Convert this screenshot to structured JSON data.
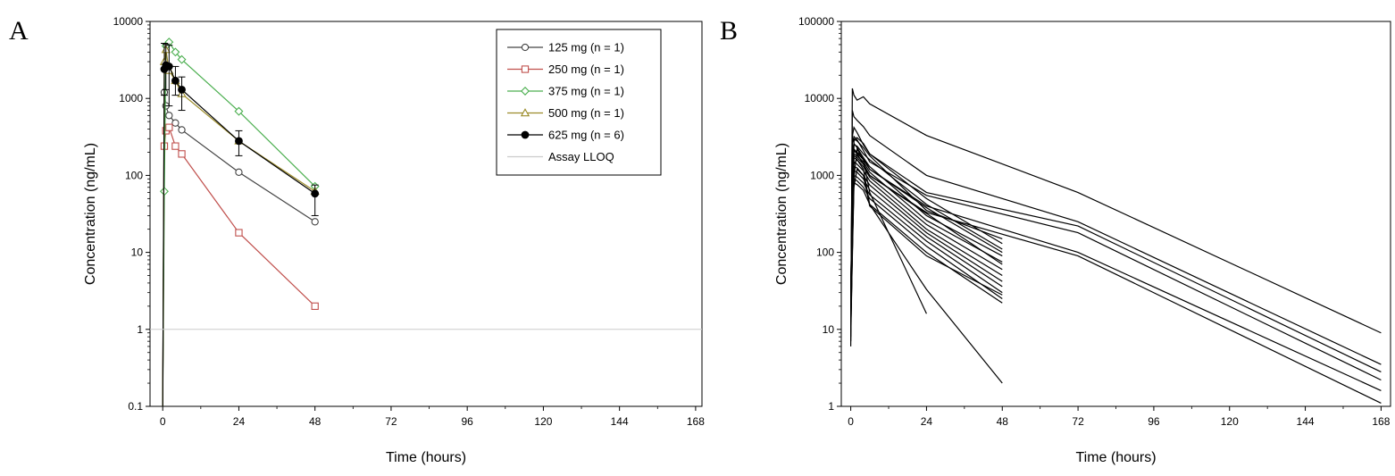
{
  "chart_data": [
    {
      "panel": "A",
      "type": "line",
      "xlabel": "Time (hours)",
      "ylabel": "Concentration (ng/mL)",
      "scale_y": "log",
      "xlim": [
        -4,
        170
      ],
      "ylim": [
        0.1,
        10000
      ],
      "x_ticks": [
        0,
        24,
        48,
        72,
        96,
        120,
        144,
        168
      ],
      "y_ticks": [
        0.1,
        1,
        10,
        100,
        1000,
        10000
      ],
      "y_tick_labels": [
        "0.1",
        "1",
        "10",
        "100",
        "1000",
        "10000"
      ],
      "legend_position": "top-right",
      "series": [
        {
          "name": "125 mg (n = 1)",
          "color": "#444444",
          "marker": "circle-open",
          "x": [
            0,
            0.5,
            1,
            2,
            4,
            6,
            24,
            48
          ],
          "y": [
            0.1,
            1200,
            800,
            600,
            480,
            390,
            110,
            25
          ]
        },
        {
          "name": "250 mg (n = 1)",
          "color": "#c0504d",
          "marker": "square-open",
          "x": [
            0,
            0.5,
            1,
            2,
            4,
            6,
            24,
            48
          ],
          "y": [
            0.1,
            240,
            380,
            420,
            240,
            190,
            18,
            2
          ]
        },
        {
          "name": "375 mg (n = 1)",
          "color": "#4caf50",
          "marker": "diamond-open",
          "x": [
            0,
            0.5,
            1,
            2,
            4,
            6,
            24,
            48
          ],
          "y": [
            0.1,
            62,
            4800,
            5400,
            4000,
            3200,
            680,
            72
          ]
        },
        {
          "name": "500 mg (n = 1)",
          "color": "#9c8c2a",
          "marker": "triangle-open",
          "x": [
            0,
            0.5,
            1,
            2,
            4,
            6,
            24,
            48
          ],
          "y": [
            0.1,
            3000,
            4300,
            2300,
            1700,
            1150,
            280,
            62
          ]
        },
        {
          "name": "625 mg (n = 6)",
          "color": "#000000",
          "marker": "circle-filled",
          "x": [
            0,
            0.5,
            1,
            2,
            4,
            6,
            24,
            48
          ],
          "y": [
            0.1,
            2400,
            2700,
            2600,
            1700,
            1300,
            280,
            58
          ],
          "error_low": [
            null,
            1100,
            1300,
            800,
            1100,
            700,
            180,
            30
          ],
          "error_high": [
            null,
            5200,
            5100,
            4900,
            2600,
            1900,
            380,
            75
          ]
        },
        {
          "name": "Assay LLOQ",
          "color": "#cccccc",
          "marker": "none",
          "x": [
            -4,
            170
          ],
          "y": [
            1,
            1
          ]
        }
      ]
    },
    {
      "panel": "B",
      "type": "line",
      "xlabel": "Time (hours)",
      "ylabel": "Concentration (ng/mL)",
      "scale_y": "log",
      "xlim": [
        -3,
        171
      ],
      "ylim": [
        1,
        100000
      ],
      "x_ticks": [
        0,
        24,
        48,
        72,
        96,
        120,
        144,
        168
      ],
      "y_ticks": [
        1,
        10,
        100,
        1000,
        10000,
        100000
      ],
      "y_tick_labels": [
        "1",
        "10",
        "100",
        "1000",
        "10000",
        "100000"
      ],
      "series": [
        {
          "x": [
            0,
            0.5,
            1,
            2,
            4,
            6,
            24,
            72,
            168
          ],
          "y": [
            6,
            13500,
            11000,
            9500,
            10500,
            8500,
            3300,
            600,
            9
          ]
        },
        {
          "x": [
            0,
            0.5,
            1,
            2,
            4,
            6,
            24,
            72,
            168
          ],
          "y": [
            12,
            7000,
            5800,
            5200,
            4300,
            3300,
            1000,
            250,
            3.5
          ]
        },
        {
          "x": [
            0,
            0.5,
            1,
            2,
            4,
            6,
            24,
            72,
            168
          ],
          "y": [
            20,
            3200,
            4200,
            3600,
            2500,
            1900,
            600,
            220,
            2.8
          ]
        },
        {
          "x": [
            0,
            0.5,
            1,
            2,
            4,
            6,
            24,
            72,
            168
          ],
          "y": [
            10,
            2600,
            3200,
            2900,
            2100,
            1500,
            550,
            180,
            2.2
          ]
        },
        {
          "x": [
            0,
            0.5,
            1,
            2,
            4,
            6,
            24,
            72,
            168
          ],
          "y": [
            8,
            2000,
            2600,
            2300,
            1700,
            1200,
            400,
            100,
            1.6
          ]
        },
        {
          "x": [
            0,
            0.5,
            1,
            2,
            4,
            6,
            24,
            72,
            168
          ],
          "y": [
            15,
            1500,
            2100,
            1900,
            1400,
            1000,
            330,
            90,
            1.1
          ]
        },
        {
          "x": [
            0,
            1,
            2,
            4,
            6,
            24,
            48
          ],
          "y": [
            30,
            3000,
            2800,
            2300,
            1800,
            350,
            150
          ]
        },
        {
          "x": [
            0,
            1,
            2,
            4,
            6,
            24,
            48
          ],
          "y": [
            25,
            2500,
            2400,
            1900,
            1600,
            420,
            110
          ]
        },
        {
          "x": [
            0,
            1,
            2,
            4,
            6,
            24,
            48
          ],
          "y": [
            40,
            2200,
            2000,
            1700,
            1300,
            300,
            90
          ]
        },
        {
          "x": [
            0,
            1,
            2,
            4,
            6,
            24,
            48
          ],
          "y": [
            18,
            1900,
            1800,
            1500,
            1100,
            260,
            75
          ]
        },
        {
          "x": [
            0,
            1,
            2,
            4,
            6,
            24,
            48
          ],
          "y": [
            22,
            1700,
            1600,
            1300,
            950,
            230,
            60
          ]
        },
        {
          "x": [
            0,
            1,
            2,
            4,
            6,
            24,
            48
          ],
          "y": [
            35,
            1500,
            1400,
            1150,
            850,
            200,
            50
          ]
        },
        {
          "x": [
            0,
            1,
            2,
            4,
            6,
            24,
            48
          ],
          "y": [
            12,
            1300,
            1250,
            1000,
            750,
            180,
            42
          ]
        },
        {
          "x": [
            0,
            1,
            2,
            4,
            6,
            24,
            48
          ],
          "y": [
            28,
            1150,
            1100,
            900,
            650,
            160,
            36
          ]
        },
        {
          "x": [
            0,
            1,
            2,
            4,
            6,
            24,
            48
          ],
          "y": [
            16,
            1000,
            950,
            800,
            560,
            140,
            30
          ]
        },
        {
          "x": [
            0,
            1,
            2,
            4,
            6,
            24,
            48
          ],
          "y": [
            20,
            900,
            850,
            700,
            500,
            120,
            25
          ]
        },
        {
          "x": [
            0,
            1,
            2,
            4,
            6,
            24,
            48
          ],
          "y": [
            45,
            2800,
            3100,
            2600,
            1900,
            500,
            130
          ]
        },
        {
          "x": [
            0,
            1,
            2,
            4,
            6,
            24,
            48
          ],
          "y": [
            14,
            800,
            760,
            640,
            420,
            100,
            22
          ]
        },
        {
          "x": [
            0,
            1,
            2,
            4,
            6,
            24,
            48
          ],
          "y": [
            10,
            700,
            1200,
            1000,
            400,
            90,
            28
          ]
        },
        {
          "x": [
            0,
            1,
            2,
            4,
            6,
            24,
            48
          ],
          "y": [
            9,
            1800,
            1700,
            1400,
            1000,
            320,
            70
          ]
        },
        {
          "x": [
            0,
            1,
            2,
            4,
            6,
            24,
            48
          ],
          "y": [
            33,
            2100,
            1950,
            1600,
            1200,
            380,
            100
          ]
        },
        {
          "x": [
            0,
            1,
            2,
            4,
            6,
            24
          ],
          "y": [
            12,
            900,
            2200,
            1600,
            600,
            16
          ]
        },
        {
          "x": [
            0,
            1,
            2,
            4,
            6,
            24,
            48
          ],
          "y": [
            7,
            1400,
            1600,
            1200,
            420,
            33,
            2
          ]
        }
      ]
    }
  ],
  "panel_labels": {
    "a": "A",
    "b": "B"
  }
}
